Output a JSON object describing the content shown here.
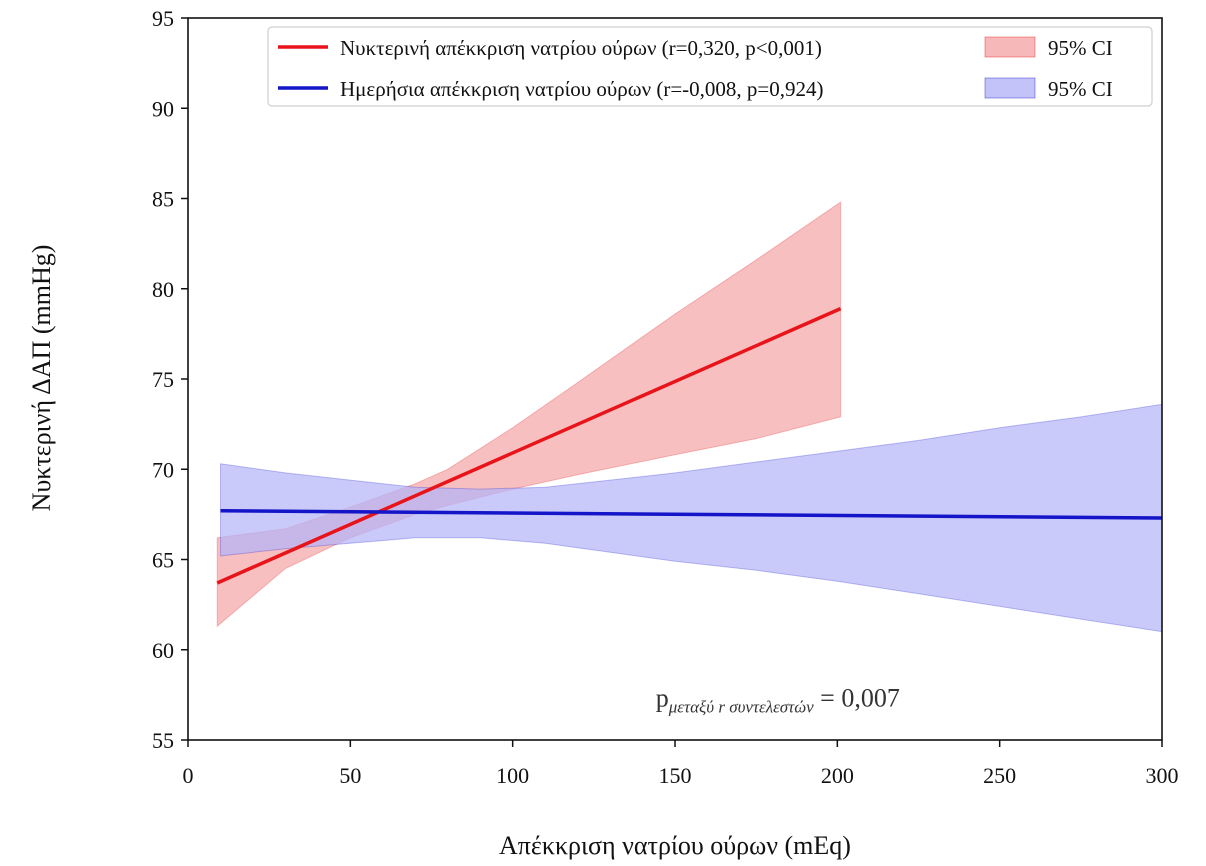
{
  "chart_data": {
    "type": "line",
    "title": "",
    "xlabel": "Απέκκριση νατρίου ούρων (mEq)",
    "ylabel": "Νυκτερινή ΔΑΠ (mmHg)",
    "xlim": [
      0,
      300
    ],
    "ylim": [
      55,
      95
    ],
    "xticks": [
      0,
      50,
      100,
      150,
      200,
      250,
      300
    ],
    "yticks": [
      55,
      60,
      65,
      70,
      75,
      80,
      85,
      90,
      95
    ],
    "grid": false,
    "legend_position": "top-right",
    "series": [
      {
        "name": "Νυκτερινή απέκκριση νατρίου ούρων (r=0,320, p<0,001)",
        "color": "#e8141a",
        "x": [
          9,
          201
        ],
        "y": [
          63.7,
          78.9
        ],
        "ci_name": "95% CI",
        "ci_color": "#f4a6a6",
        "ci": {
          "x": [
            9,
            30,
            50,
            70,
            80,
            100,
            120,
            150,
            175,
            201
          ],
          "lower": [
            61.3,
            64.5,
            66.2,
            67.5,
            68.0,
            68.9,
            69.7,
            70.8,
            71.7,
            72.9
          ],
          "upper": [
            66.2,
            66.7,
            67.9,
            69.2,
            70.0,
            72.3,
            74.8,
            78.6,
            81.6,
            84.8
          ]
        }
      },
      {
        "name": "Ημερήσια απέκκριση νατρίου ούρων (r=-0,008, p=0,924)",
        "color": "#1414c8",
        "x": [
          10,
          300
        ],
        "y": [
          67.7,
          67.3
        ],
        "ci_name": "95% CI",
        "ci_color": "#b4b4f8",
        "ci": {
          "x": [
            10,
            30,
            50,
            70,
            90,
            110,
            130,
            150,
            175,
            200,
            225,
            250,
            275,
            300
          ],
          "lower": [
            65.2,
            65.6,
            65.9,
            66.2,
            66.2,
            65.9,
            65.4,
            64.9,
            64.4,
            63.8,
            63.1,
            62.4,
            61.7,
            61.0
          ],
          "upper": [
            70.3,
            69.8,
            69.4,
            69.0,
            68.9,
            69.0,
            69.4,
            69.8,
            70.4,
            71.0,
            71.6,
            72.3,
            72.9,
            73.6
          ]
        }
      }
    ],
    "annotation": {
      "prefix": "p",
      "subscript": "μεταξύ r συντελεστών",
      "value": "= 0,007",
      "x": 145,
      "y": 57.3
    }
  }
}
